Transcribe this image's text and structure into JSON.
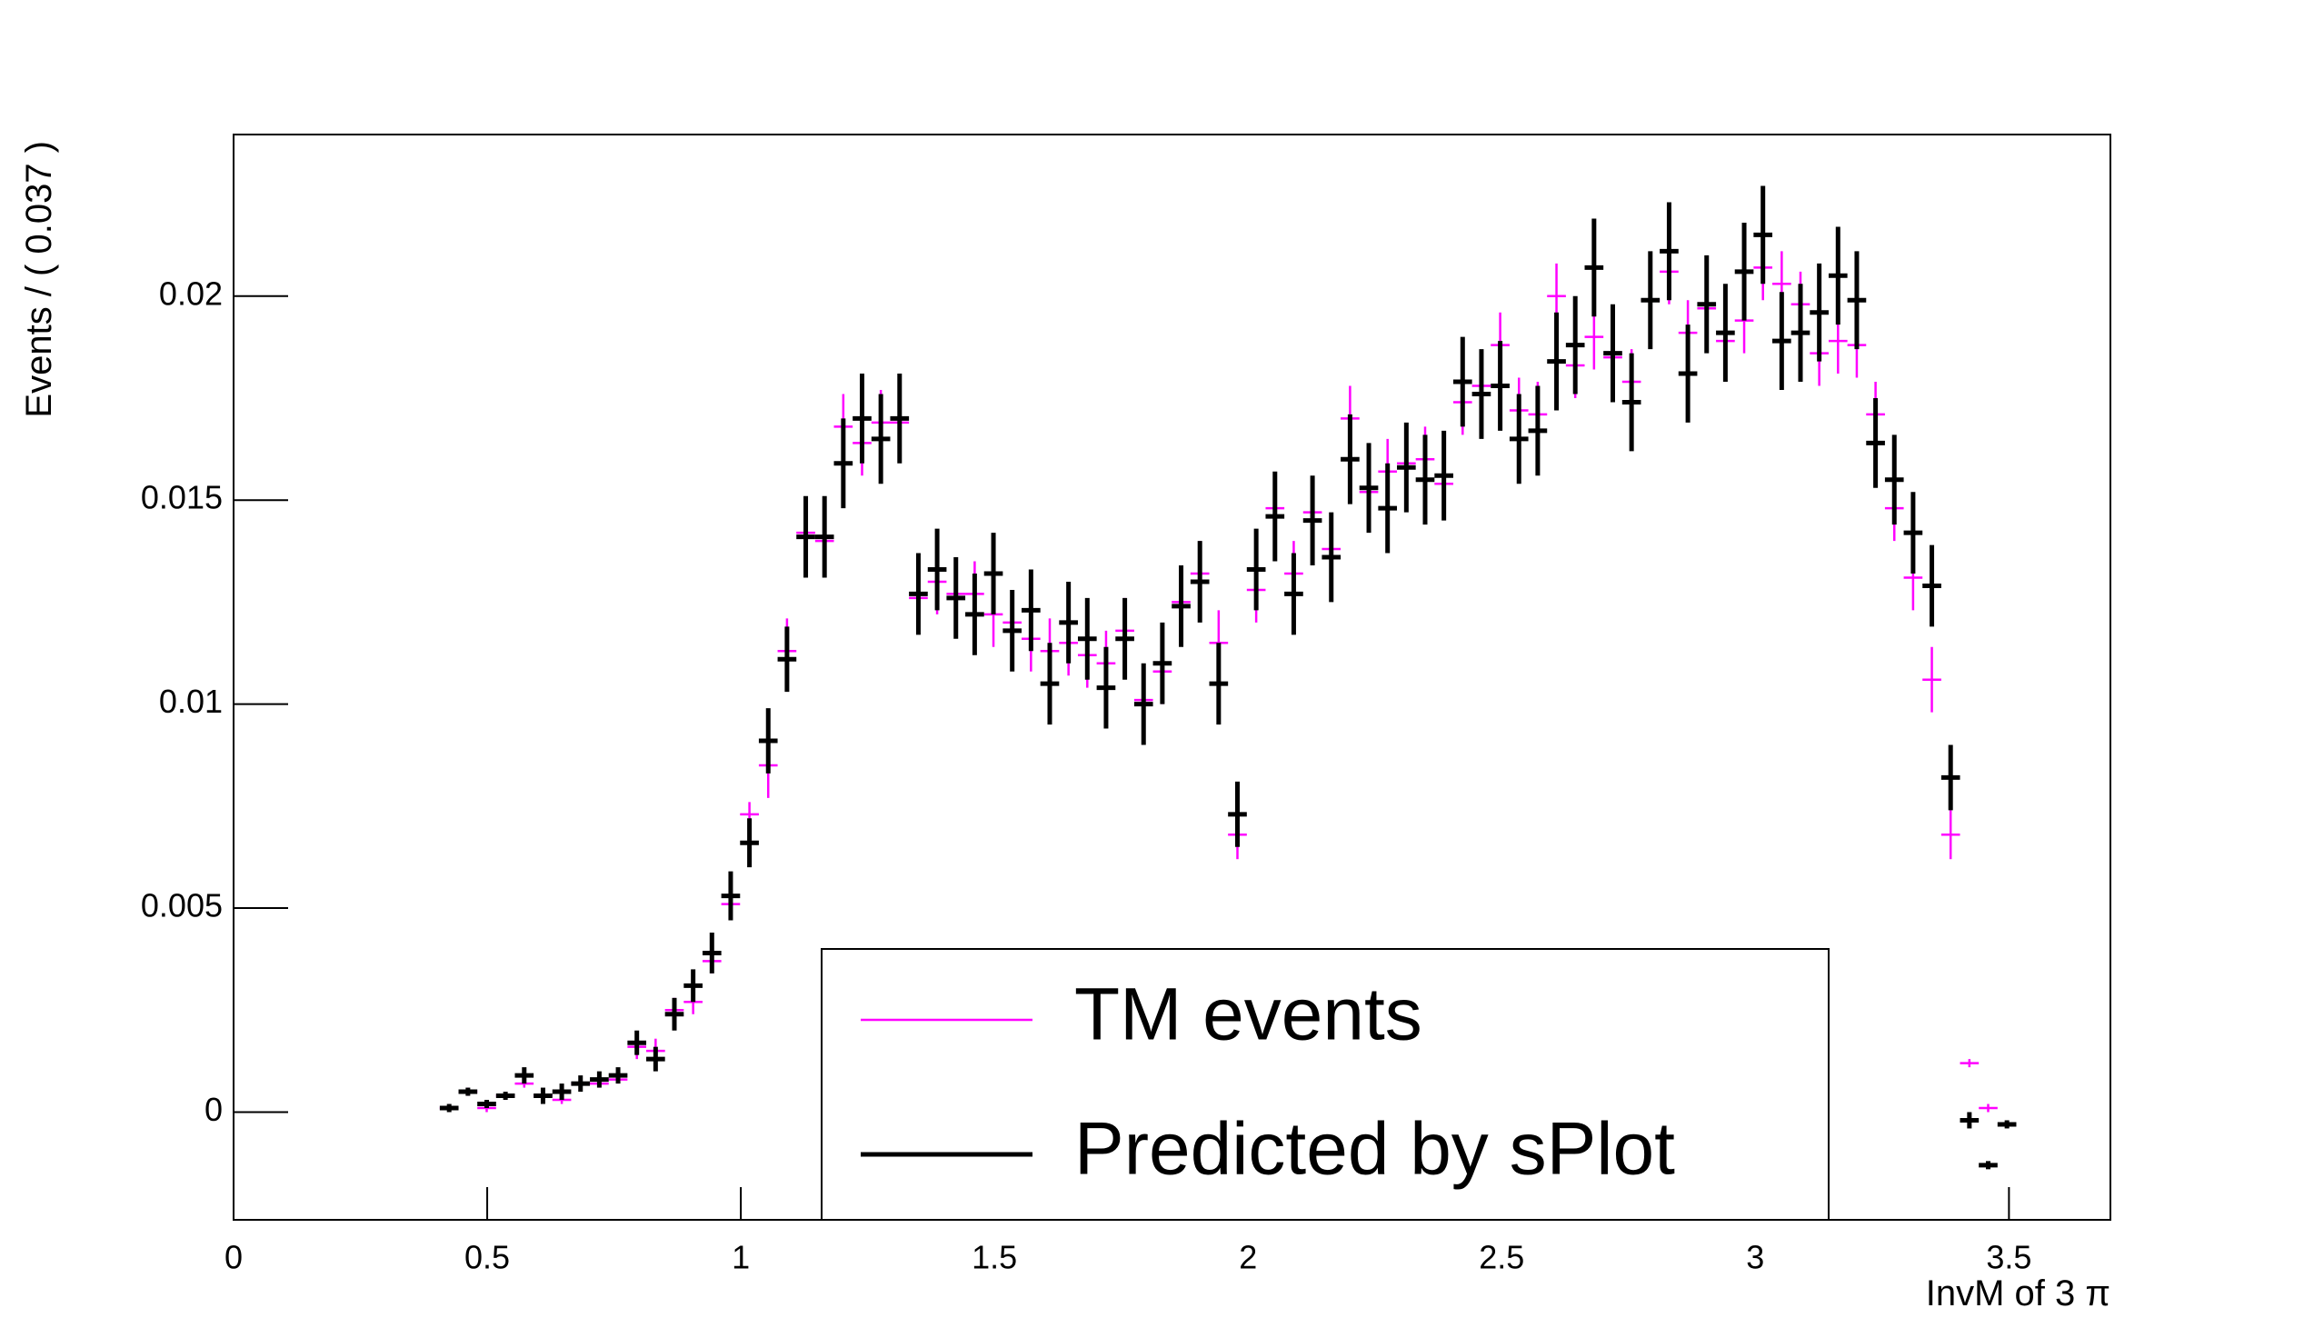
{
  "chart_data": {
    "type": "errorbar",
    "x_label": "InvM of 3 π",
    "y_label": "Events / ( 0.037 )",
    "x": [
      0.425,
      0.462,
      0.499,
      0.536,
      0.573,
      0.61,
      0.647,
      0.684,
      0.721,
      0.758,
      0.795,
      0.832,
      0.869,
      0.906,
      0.943,
      0.98,
      1.017,
      1.054,
      1.091,
      1.128,
      1.165,
      1.202,
      1.239,
      1.276,
      1.313,
      1.35,
      1.387,
      1.424,
      1.461,
      1.498,
      1.535,
      1.572,
      1.609,
      1.646,
      1.683,
      1.72,
      1.757,
      1.794,
      1.831,
      1.868,
      1.905,
      1.942,
      1.979,
      2.016,
      2.053,
      2.09,
      2.127,
      2.164,
      2.201,
      2.238,
      2.275,
      2.312,
      2.349,
      2.386,
      2.423,
      2.46,
      2.497,
      2.534,
      2.571,
      2.608,
      2.645,
      2.682,
      2.719,
      2.756,
      2.793,
      2.83,
      2.867,
      2.904,
      2.941,
      2.978,
      3.015,
      3.052,
      3.089,
      3.126,
      3.163,
      3.2,
      3.237,
      3.274,
      3.311,
      3.348,
      3.385,
      3.422,
      3.459,
      3.496
    ],
    "series": [
      {
        "name": "TM events",
        "color": "#ff00ff",
        "values": [
          0.0001,
          0.0005,
          0.0001,
          0.0004,
          0.0007,
          0.0004,
          0.0003,
          0.0007,
          0.0007,
          0.0008,
          0.0016,
          0.0015,
          0.0025,
          0.0027,
          0.0037,
          0.0051,
          0.0073,
          0.0085,
          0.0113,
          0.0142,
          0.014,
          0.0168,
          0.0164,
          0.0169,
          0.0169,
          0.0126,
          0.013,
          0.0127,
          0.0127,
          0.0122,
          0.012,
          0.0116,
          0.0113,
          0.0115,
          0.0112,
          0.011,
          0.0118,
          0.0101,
          0.0108,
          0.0125,
          0.0132,
          0.0115,
          0.0068,
          0.0128,
          0.0148,
          0.0132,
          0.0147,
          0.0138,
          0.017,
          0.0152,
          0.0157,
          0.0159,
          0.016,
          0.0154,
          0.0174,
          0.0178,
          0.0188,
          0.0172,
          0.0171,
          0.02,
          0.0183,
          0.019,
          0.0185,
          0.0179,
          0.0199,
          0.0206,
          0.0191,
          0.0197,
          0.0189,
          0.0194,
          0.0207,
          0.0203,
          0.0198,
          0.0186,
          0.0189,
          0.0188,
          0.0171,
          0.0148,
          0.0131,
          0.0106,
          0.0068,
          0.0012,
          0.0001,
          null
        ],
        "errors": [
          0.0001,
          0.0001,
          0.0001,
          0.0001,
          0.0001,
          0.0001,
          0.0001,
          0.0001,
          0.0001,
          0.0001,
          0.0003,
          0.0003,
          0.0003,
          0.0003,
          0.0003,
          0.0003,
          0.0003,
          0.0008,
          0.0008,
          0.0008,
          0.0008,
          0.0008,
          0.0008,
          0.0008,
          0.0008,
          0.0008,
          0.0008,
          0.0008,
          0.0008,
          0.0008,
          0.0008,
          0.0008,
          0.0008,
          0.0008,
          0.0008,
          0.0008,
          0.0008,
          0.0008,
          0.0008,
          0.0008,
          0.0008,
          0.0008,
          0.0006,
          0.0008,
          0.0008,
          0.0008,
          0.0008,
          0.0008,
          0.0008,
          0.0008,
          0.0008,
          0.0008,
          0.0008,
          0.0008,
          0.0008,
          0.0008,
          0.0008,
          0.0008,
          0.0008,
          0.0008,
          0.0008,
          0.0008,
          0.0008,
          0.0008,
          0.0008,
          0.0008,
          0.0008,
          0.0008,
          0.0008,
          0.0008,
          0.0008,
          0.0008,
          0.0008,
          0.0008,
          0.0008,
          0.0008,
          0.0008,
          0.0008,
          0.0008,
          0.0008,
          0.0006,
          0.0001,
          0.0001,
          null
        ]
      },
      {
        "name": "Predicted by sPlot",
        "color": "#000000",
        "values": [
          0.0001,
          0.0005,
          0.0002,
          0.0004,
          0.0009,
          0.0004,
          0.0005,
          0.0007,
          0.0008,
          0.0009,
          0.0017,
          0.0013,
          0.0024,
          0.0031,
          0.0039,
          0.0053,
          0.0066,
          0.0091,
          0.0111,
          0.0141,
          0.0141,
          0.0159,
          0.017,
          0.0165,
          0.017,
          0.0127,
          0.0133,
          0.0126,
          0.0122,
          0.0132,
          0.0118,
          0.0123,
          0.0105,
          0.012,
          0.0116,
          0.0104,
          0.0116,
          0.01,
          0.011,
          0.0124,
          0.013,
          0.0105,
          0.0073,
          0.0133,
          0.0146,
          0.0127,
          0.0145,
          0.0136,
          0.016,
          0.0153,
          0.0148,
          0.0158,
          0.0155,
          0.0156,
          0.0179,
          0.0176,
          0.0178,
          0.0165,
          0.0167,
          0.0184,
          0.0188,
          0.0207,
          0.0186,
          0.0174,
          0.0199,
          0.0211,
          0.0181,
          0.0198,
          0.0191,
          0.0206,
          0.0215,
          0.0189,
          0.0191,
          0.0196,
          0.0205,
          0.0199,
          0.0164,
          0.0155,
          0.0142,
          0.0129,
          0.0082,
          -0.0002,
          -0.0013,
          -0.0003
        ],
        "errors": [
          0.0001,
          0.0001,
          0.0001,
          0.0001,
          0.0002,
          0.0002,
          0.0002,
          0.0002,
          0.0002,
          0.0002,
          0.0003,
          0.0003,
          0.0004,
          0.0004,
          0.0005,
          0.0006,
          0.0006,
          0.0008,
          0.0008,
          0.001,
          0.001,
          0.0011,
          0.0011,
          0.0011,
          0.0011,
          0.001,
          0.001,
          0.001,
          0.001,
          0.001,
          0.001,
          0.001,
          0.001,
          0.001,
          0.001,
          0.001,
          0.001,
          0.001,
          0.001,
          0.001,
          0.001,
          0.001,
          0.0008,
          0.001,
          0.0011,
          0.001,
          0.0011,
          0.0011,
          0.0011,
          0.0011,
          0.0011,
          0.0011,
          0.0011,
          0.0011,
          0.0011,
          0.0011,
          0.0011,
          0.0011,
          0.0011,
          0.0012,
          0.0012,
          0.0012,
          0.0012,
          0.0012,
          0.0012,
          0.0012,
          0.0012,
          0.0012,
          0.0012,
          0.0012,
          0.0012,
          0.0012,
          0.0012,
          0.0012,
          0.0012,
          0.0012,
          0.0011,
          0.0011,
          0.001,
          0.001,
          0.0008,
          0.0002,
          0.0001,
          0.0001
        ]
      }
    ],
    "xlim": [
      0,
      3.7
    ],
    "xticks": [
      0,
      0.5,
      1,
      1.5,
      2,
      2.5,
      3,
      3.5
    ],
    "ylim": [
      -0.00264,
      0.02396
    ],
    "yticks": [
      0,
      0.005,
      0.01,
      0.015,
      0.02
    ]
  }
}
